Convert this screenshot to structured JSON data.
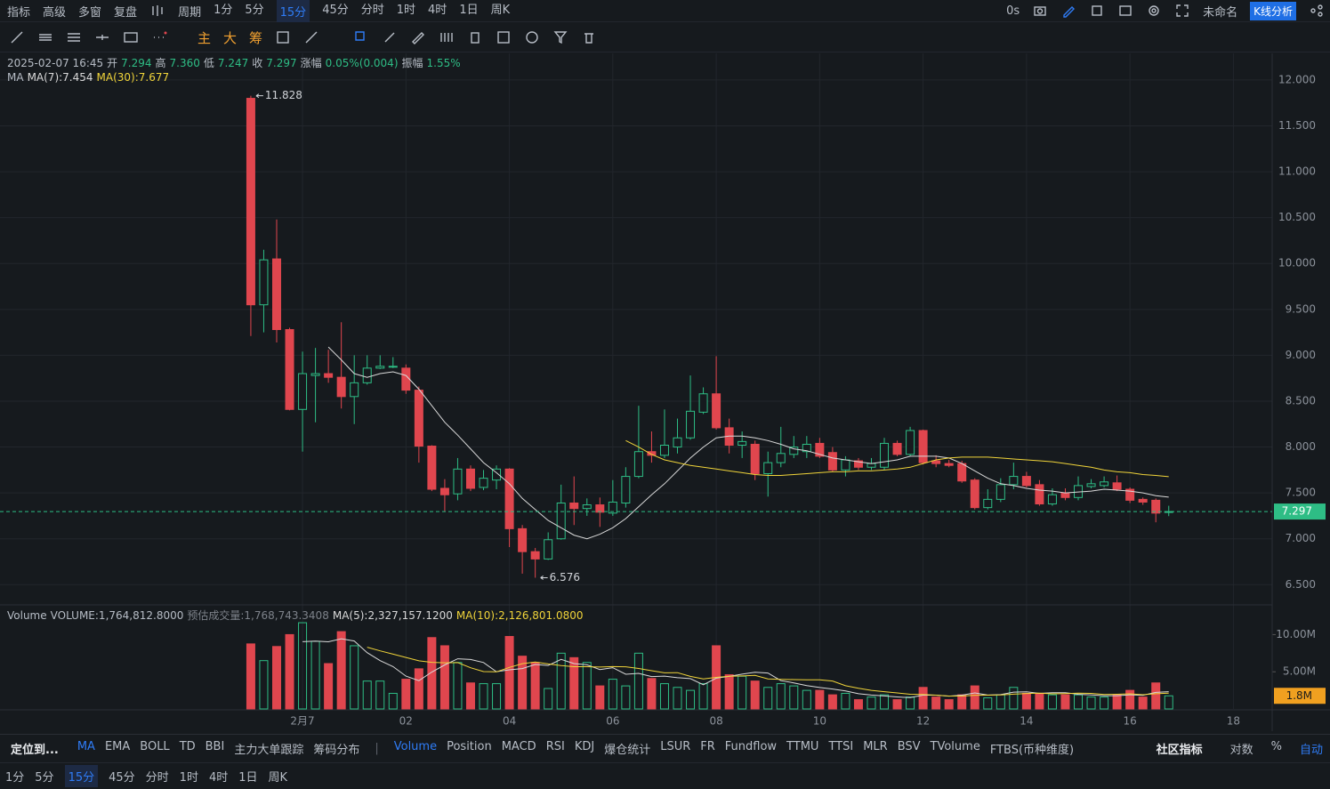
{
  "top_bar": {
    "tools": [
      "指标",
      "高级",
      "多窗",
      "复盘",
      "周期"
    ],
    "periods": [
      "1分",
      "5分",
      "15分",
      "45分",
      "分时",
      "1时",
      "4时",
      "1日",
      "周K"
    ],
    "active_period": 2,
    "timer": "0s",
    "layout_name": "未命名",
    "analysis": "K线分析"
  },
  "draw_bar": {
    "modes": [
      "主",
      "大",
      "筹"
    ]
  },
  "info": {
    "time": "2025-02-07 16:45",
    "items": [
      {
        "label": "开",
        "value": "7.294"
      },
      {
        "label": "高",
        "value": "7.360"
      },
      {
        "label": "低",
        "value": "7.247"
      },
      {
        "label": "收",
        "value": "7.297"
      },
      {
        "label": "涨幅",
        "value": "0.05%(0.004)"
      },
      {
        "label": "振幅",
        "value": "1.55%"
      }
    ]
  },
  "chart_data": {
    "type": "candlestick",
    "up_color": "#2ebd85",
    "down_color": "#e0464e",
    "grid": true,
    "x": [
      -1,
      -0.75,
      -0.5,
      -0.25,
      0,
      0.25,
      0.5,
      0.75,
      1,
      1.25,
      1.5,
      1.75,
      2,
      2.25,
      2.5,
      2.75,
      3,
      3.25,
      3.5,
      3.75,
      4,
      4.25,
      4.5,
      4.75,
      5,
      5.25,
      5.5,
      5.75,
      6,
      6.25,
      6.5,
      6.75,
      7,
      7.25,
      7.5,
      7.75,
      8,
      8.25,
      8.5,
      8.75,
      9,
      9.25,
      9.5,
      9.75,
      10,
      10.25,
      10.5,
      10.75,
      11,
      11.25,
      11.5,
      11.75,
      12,
      12.25,
      12.5,
      12.75,
      13,
      13.25,
      13.5,
      13.75,
      14,
      14.25,
      14.5,
      14.75,
      15,
      15.25,
      15.5,
      15.75,
      16,
      16.25,
      16.5,
      16.75
    ],
    "xlim": [
      -5.85,
      18.75
    ],
    "xticks": [
      {
        "value": 0,
        "label": "2月7"
      },
      {
        "value": 2,
        "label": "02"
      },
      {
        "value": 4,
        "label": "04"
      },
      {
        "value": 6,
        "label": "06"
      },
      {
        "value": 8,
        "label": "08"
      },
      10,
      12,
      14,
      16,
      18
    ],
    "ylim": [
      6.28,
      12.29
    ],
    "yticks": [
      {
        "value": 6.5,
        "label": "6.500"
      },
      {
        "value": 7,
        "label": "7.000"
      },
      {
        "value": 7.5,
        "label": "7.500"
      },
      {
        "value": 8,
        "label": "8.000"
      },
      {
        "value": 8.5,
        "label": "8.500"
      },
      {
        "value": 9,
        "label": "9.000"
      },
      {
        "value": 9.5,
        "label": "9.500"
      },
      {
        "value": 10,
        "label": "10.000"
      },
      {
        "value": 10.5,
        "label": "10.500"
      },
      {
        "value": 11,
        "label": "11.000"
      },
      {
        "value": 11.5,
        "label": "11.500"
      },
      {
        "value": 12,
        "label": "12.000"
      }
    ],
    "open": [
      11.8,
      9.55,
      10.05,
      9.28,
      8.41,
      8.78,
      8.8,
      8.76,
      8.55,
      8.7,
      8.86,
      8.87,
      8.86,
      8.62,
      8.01,
      7.55,
      7.49,
      7.76,
      7.56,
      7.64,
      7.76,
      7.11,
      6.86,
      6.78,
      7.0,
      7.39,
      7.33,
      7.37,
      7.28,
      7.39,
      7.68,
      7.95,
      7.91,
      8.0,
      8.1,
      8.38,
      8.58,
      8.21,
      8.02,
      8.03,
      7.71,
      7.83,
      7.92,
      7.95,
      8.04,
      7.94,
      7.75,
      7.85,
      7.78,
      7.78,
      8.04,
      7.92,
      8.18,
      7.85,
      7.82,
      7.82,
      7.64,
      7.34,
      7.43,
      7.59,
      7.68,
      7.59,
      7.38,
      7.5,
      7.45,
      7.57,
      7.58,
      7.61,
      7.54,
      7.43,
      7.42,
      7.294
    ],
    "high": [
      11.828,
      10.15,
      10.48,
      9.3,
      9.04,
      9.08,
      9.06,
      9.36,
      9.0,
      9.0,
      9.0,
      8.98,
      8.9,
      8.66,
      8.02,
      7.65,
      7.88,
      7.8,
      7.75,
      7.8,
      7.77,
      7.15,
      6.9,
      7.07,
      7.59,
      7.68,
      7.44,
      7.45,
      7.64,
      7.78,
      8.45,
      8.17,
      8.41,
      8.31,
      8.78,
      8.65,
      8.99,
      8.31,
      8.17,
      8.07,
      7.95,
      8.22,
      8.12,
      8.12,
      8.1,
      8.0,
      7.9,
      7.88,
      7.88,
      8.1,
      8.07,
      8.22,
      8.19,
      7.91,
      7.86,
      7.85,
      7.66,
      7.54,
      7.66,
      7.83,
      7.73,
      7.64,
      7.55,
      7.55,
      7.68,
      7.65,
      7.68,
      7.69,
      7.56,
      7.45,
      7.44,
      7.36
    ],
    "low": [
      9.21,
      9.25,
      9.14,
      8.4,
      7.95,
      8.27,
      8.7,
      8.42,
      8.25,
      8.68,
      8.85,
      8.86,
      8.58,
      7.83,
      7.52,
      7.3,
      7.42,
      7.52,
      7.53,
      7.54,
      6.91,
      6.62,
      6.576,
      6.77,
      6.99,
      7.15,
      7.25,
      7.13,
      7.25,
      7.34,
      7.66,
      7.83,
      7.88,
      7.93,
      8.08,
      8.36,
      8.19,
      7.93,
      7.88,
      7.64,
      7.46,
      7.78,
      7.88,
      7.88,
      7.88,
      7.73,
      7.68,
      7.75,
      7.75,
      7.75,
      7.9,
      7.9,
      7.81,
      7.78,
      7.78,
      7.61,
      7.32,
      7.32,
      7.4,
      7.54,
      7.56,
      7.36,
      7.36,
      7.42,
      7.42,
      7.55,
      7.56,
      7.52,
      7.39,
      7.37,
      7.18,
      7.247
    ],
    "close": [
      9.55,
      10.04,
      9.28,
      8.41,
      8.8,
      8.8,
      8.76,
      8.55,
      8.7,
      8.86,
      8.88,
      8.88,
      8.62,
      8.01,
      7.54,
      7.48,
      7.76,
      7.55,
      7.66,
      7.76,
      7.11,
      6.86,
      6.78,
      6.99,
      7.39,
      7.33,
      7.37,
      7.29,
      7.4,
      7.68,
      7.95,
      7.91,
      8.02,
      8.1,
      8.39,
      8.58,
      8.21,
      8.02,
      8.06,
      7.71,
      7.83,
      7.93,
      8.0,
      8.03,
      7.9,
      7.75,
      7.86,
      7.78,
      7.82,
      8.04,
      7.92,
      8.18,
      7.83,
      7.82,
      7.8,
      7.63,
      7.34,
      7.43,
      7.59,
      7.68,
      7.58,
      7.38,
      7.48,
      7.45,
      7.58,
      7.6,
      7.62,
      7.54,
      7.42,
      7.4,
      7.28,
      7.297
    ],
    "high_label": "11.828",
    "low_label": "6.576",
    "last_label": "7.297",
    "last_color": "#2ebd85",
    "indicator": "MA",
    "series": [
      {
        "name": "MA(7):7.454",
        "color": "#d9d9d9",
        "values": [
          null,
          null,
          null,
          null,
          null,
          null,
          9.09,
          8.95,
          8.8,
          8.76,
          8.8,
          8.82,
          8.78,
          8.63,
          8.45,
          8.27,
          8.13,
          7.98,
          7.83,
          7.72,
          7.6,
          7.44,
          7.32,
          7.2,
          7.12,
          7.04,
          7.0,
          7.05,
          7.12,
          7.22,
          7.35,
          7.48,
          7.6,
          7.74,
          7.88,
          8.0,
          8.1,
          8.12,
          8.12,
          8.1,
          8.07,
          8.03,
          7.98,
          7.96,
          7.92,
          7.88,
          7.86,
          7.84,
          7.82,
          7.84,
          7.86,
          7.9,
          7.9,
          7.9,
          7.88,
          7.82,
          7.74,
          7.66,
          7.6,
          7.58,
          7.55,
          7.53,
          7.52,
          7.5,
          7.51,
          7.52,
          7.54,
          7.53,
          7.52,
          7.5,
          7.47,
          7.454
        ]
      },
      {
        "name": "MA(30):7.677",
        "color": "#f0d43a",
        "values": [
          null,
          null,
          null,
          null,
          null,
          null,
          null,
          null,
          null,
          null,
          null,
          null,
          null,
          null,
          null,
          null,
          null,
          null,
          null,
          null,
          null,
          null,
          null,
          null,
          null,
          null,
          null,
          null,
          null,
          8.07,
          8.0,
          7.92,
          7.86,
          7.83,
          7.8,
          7.78,
          7.76,
          7.74,
          7.72,
          7.7,
          7.69,
          7.69,
          7.7,
          7.71,
          7.72,
          7.73,
          7.73,
          7.74,
          7.74,
          7.75,
          7.76,
          7.78,
          7.82,
          7.86,
          7.88,
          7.89,
          7.89,
          7.89,
          7.88,
          7.87,
          7.86,
          7.85,
          7.84,
          7.82,
          7.8,
          7.78,
          7.75,
          7.73,
          7.72,
          7.7,
          7.69,
          7.677
        ]
      }
    ],
    "volume": {
      "label": "Volume",
      "items": [
        "VOLUME:1,764,812.8000",
        "预估成交量:1,768,743.3408"
      ],
      "ylim": [
        0,
        14000000
      ],
      "yticks": [
        {
          "value": 5000000,
          "label": "5.00M"
        },
        {
          "value": 10000000,
          "label": "10.00M"
        }
      ],
      "values": [
        8750000,
        6500000,
        8400000,
        10000000,
        11600000,
        9100000,
        6100000,
        10400000,
        8500000,
        3750000,
        3750000,
        2100000,
        4000000,
        5400000,
        9600000,
        8500000,
        6250000,
        3500000,
        3400000,
        3400000,
        9750000,
        7100000,
        6250000,
        2750000,
        7500000,
        6900000,
        6250000,
        3100000,
        4000000,
        3100000,
        7500000,
        4100000,
        3400000,
        2900000,
        2500000,
        3400000,
        8500000,
        4600000,
        4400000,
        3750000,
        2900000,
        3400000,
        3100000,
        2500000,
        2500000,
        1900000,
        2100000,
        1250000,
        1600000,
        1900000,
        1250000,
        1600000,
        2900000,
        1600000,
        1250000,
        1900000,
        3100000,
        1500000,
        1900000,
        2900000,
        2100000,
        2100000,
        1900000,
        1900000,
        1900000,
        1600000,
        1600000,
        1900000,
        2500000,
        1600000,
        3500000,
        1764812.8
      ],
      "last_label": "1.8M",
      "last_color": "#f0a020",
      "series": [
        {
          "name": "MA(5):2,327,157.1200",
          "color": "#d9d9d9",
          "values": [
            null,
            null,
            null,
            null,
            9050000,
            9120000,
            9040000,
            9440000,
            9140000,
            7570000,
            6500000,
            5700000,
            4420000,
            3800000,
            4970000,
            5920000,
            6750000,
            6650000,
            6250000,
            5010000,
            5260000,
            5430000,
            5980000,
            5850000,
            6670000,
            6100000,
            5930000,
            5300000,
            5550000,
            4670000,
            4790000,
            4360000,
            4420000,
            4200000,
            4080000,
            3260000,
            4140000,
            4380000,
            4680000,
            4930000,
            4830000,
            3810000,
            3510000,
            3130000,
            2880000,
            2680000,
            2420000,
            2050000,
            1870000,
            1750000,
            1620000,
            1520000,
            1850000,
            1850000,
            1720000,
            1850000,
            2150000,
            1870000,
            1930000,
            2260000,
            2300000,
            2100000,
            2180000,
            2180000,
            1980000,
            1880000,
            1780000,
            1780000,
            1900000,
            1840000,
            2220000,
            2327157.12
          ]
        },
        {
          "name": "MA(10):2,126,801.0800",
          "color": "#f0d43a",
          "values": [
            null,
            null,
            null,
            null,
            null,
            null,
            null,
            null,
            null,
            8310000,
            7810000,
            7370000,
            6930000,
            6470000,
            6270000,
            6210000,
            6230000,
            5540000,
            5030000,
            4990000,
            5590000,
            6090000,
            6320000,
            6050000,
            5840000,
            5680000,
            5680000,
            5640000,
            5700000,
            5670000,
            5450000,
            5150000,
            4860000,
            4880000,
            4380000,
            4030000,
            4250000,
            4400000,
            4440000,
            4510000,
            4050000,
            3980000,
            3950000,
            3910000,
            3910000,
            3760000,
            3120000,
            2780000,
            2500000,
            2320000,
            2150000,
            1970000,
            1950000,
            1860000,
            1740000,
            1740000,
            1840000,
            1860000,
            1890000,
            1990000,
            2080000,
            2130000,
            2030000,
            2060000,
            2120000,
            2090000,
            1940000,
            1980000,
            2040000,
            1910000,
            2050000,
            2126801.08
          ]
        }
      ]
    }
  },
  "indicator_bar": {
    "locate": "定位到...",
    "main": [
      "MA",
      "EMA",
      "BOLL",
      "TD",
      "BBI",
      "主力大单跟踪",
      "筹码分布"
    ],
    "sub": [
      "Volume",
      "Position",
      "MACD",
      "RSI",
      "KDJ",
      "爆仓统计",
      "LSUR",
      "FR",
      "Fundflow",
      "TTMU",
      "TTSI",
      "MLR",
      "BSV",
      "TVolume",
      "FTBS(币种维度)"
    ],
    "active_sub": 0,
    "community": "社区指标",
    "options": [
      "对数",
      "%",
      "自动"
    ]
  },
  "period_bar": {
    "periods": [
      "1分",
      "5分",
      "15分",
      "45分",
      "分时",
      "1时",
      "4时",
      "1日",
      "周K"
    ],
    "active_period": 2
  }
}
